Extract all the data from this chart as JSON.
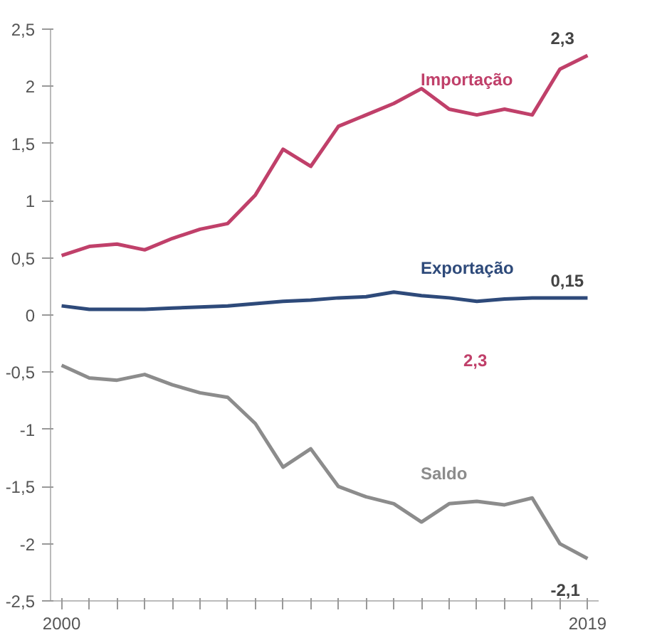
{
  "chart_data": {
    "type": "line",
    "x": [
      2000,
      2001,
      2002,
      2003,
      2004,
      2005,
      2006,
      2007,
      2008,
      2009,
      2010,
      2011,
      2012,
      2013,
      2014,
      2015,
      2016,
      2017,
      2018,
      2019
    ],
    "series": [
      {
        "name": "Importação",
        "color": "#c0406a",
        "values": [
          0.52,
          0.6,
          0.62,
          0.57,
          0.67,
          0.75,
          0.8,
          1.05,
          1.45,
          1.3,
          1.65,
          1.75,
          1.85,
          1.98,
          1.8,
          1.75,
          1.8,
          1.75,
          2.15,
          2.27
        ],
        "value_labels": [
          null,
          null,
          null,
          null,
          null,
          null,
          null,
          null,
          null,
          null,
          null,
          null,
          null,
          null,
          null,
          null,
          null,
          null,
          null,
          "2,3"
        ]
      },
      {
        "name": "Exportação",
        "color": "#2e4a7a",
        "values": [
          0.08,
          0.05,
          0.05,
          0.05,
          0.06,
          0.07,
          0.08,
          0.1,
          0.12,
          0.13,
          0.15,
          0.16,
          0.2,
          0.17,
          0.15,
          0.12,
          0.14,
          0.15,
          0.15,
          0.15
        ],
        "value_labels": [
          null,
          null,
          null,
          null,
          null,
          null,
          null,
          null,
          null,
          null,
          null,
          null,
          null,
          null,
          null,
          null,
          null,
          null,
          null,
          "0,15"
        ]
      },
      {
        "name": "Saldo",
        "color": "#8c8c8c",
        "values": [
          -0.44,
          -0.55,
          -0.57,
          -0.52,
          -0.61,
          -0.68,
          -0.72,
          -0.95,
          -1.33,
          -1.17,
          -1.5,
          -1.59,
          -1.65,
          -1.81,
          -1.65,
          -1.63,
          -1.66,
          -1.6,
          -2.0,
          -2.13
        ],
        "value_labels": [
          null,
          null,
          null,
          null,
          null,
          null,
          null,
          null,
          null,
          null,
          null,
          null,
          null,
          null,
          null,
          null,
          null,
          null,
          null,
          "-2,1"
        ]
      }
    ],
    "annotations": [
      "2,3"
    ],
    "xlim": [
      1999.6,
      2019.4
    ],
    "xticks": [
      2000,
      {
        "value": 2001,
        "label": null
      },
      {
        "value": 2002,
        "label": null
      },
      {
        "value": 2003,
        "label": null
      },
      {
        "value": 2004,
        "label": null
      },
      {
        "value": 2005,
        "label": null
      },
      {
        "value": 2006,
        "label": null
      },
      {
        "value": 2007,
        "label": null
      },
      {
        "value": 2008,
        "label": null
      },
      {
        "value": 2009,
        "label": null
      },
      {
        "value": 2010,
        "label": null
      },
      {
        "value": 2011,
        "label": null
      },
      {
        "value": 2012,
        "label": null
      },
      {
        "value": 2013,
        "label": null
      },
      {
        "value": 2014,
        "label": null
      },
      {
        "value": 2015,
        "label": null
      },
      {
        "value": 2016,
        "label": null
      },
      {
        "value": 2017,
        "label": null
      },
      {
        "value": 2018,
        "label": null
      },
      2019
    ],
    "ylim": [
      -2.5,
      2.5
    ],
    "yticks": [
      {
        "value": 2.5,
        "label": "2,5"
      },
      2,
      {
        "value": 1.5,
        "label": "1,5"
      },
      1,
      {
        "value": 0.5,
        "label": "0,5"
      },
      0,
      {
        "value": -0.5,
        "label": "-0,5"
      },
      -1,
      {
        "value": -1.5,
        "label": "-1,5"
      },
      -2,
      {
        "value": -2.5,
        "label": "-2,5"
      }
    ],
    "grid": false,
    "marker": "none",
    "line_style": "solid"
  }
}
